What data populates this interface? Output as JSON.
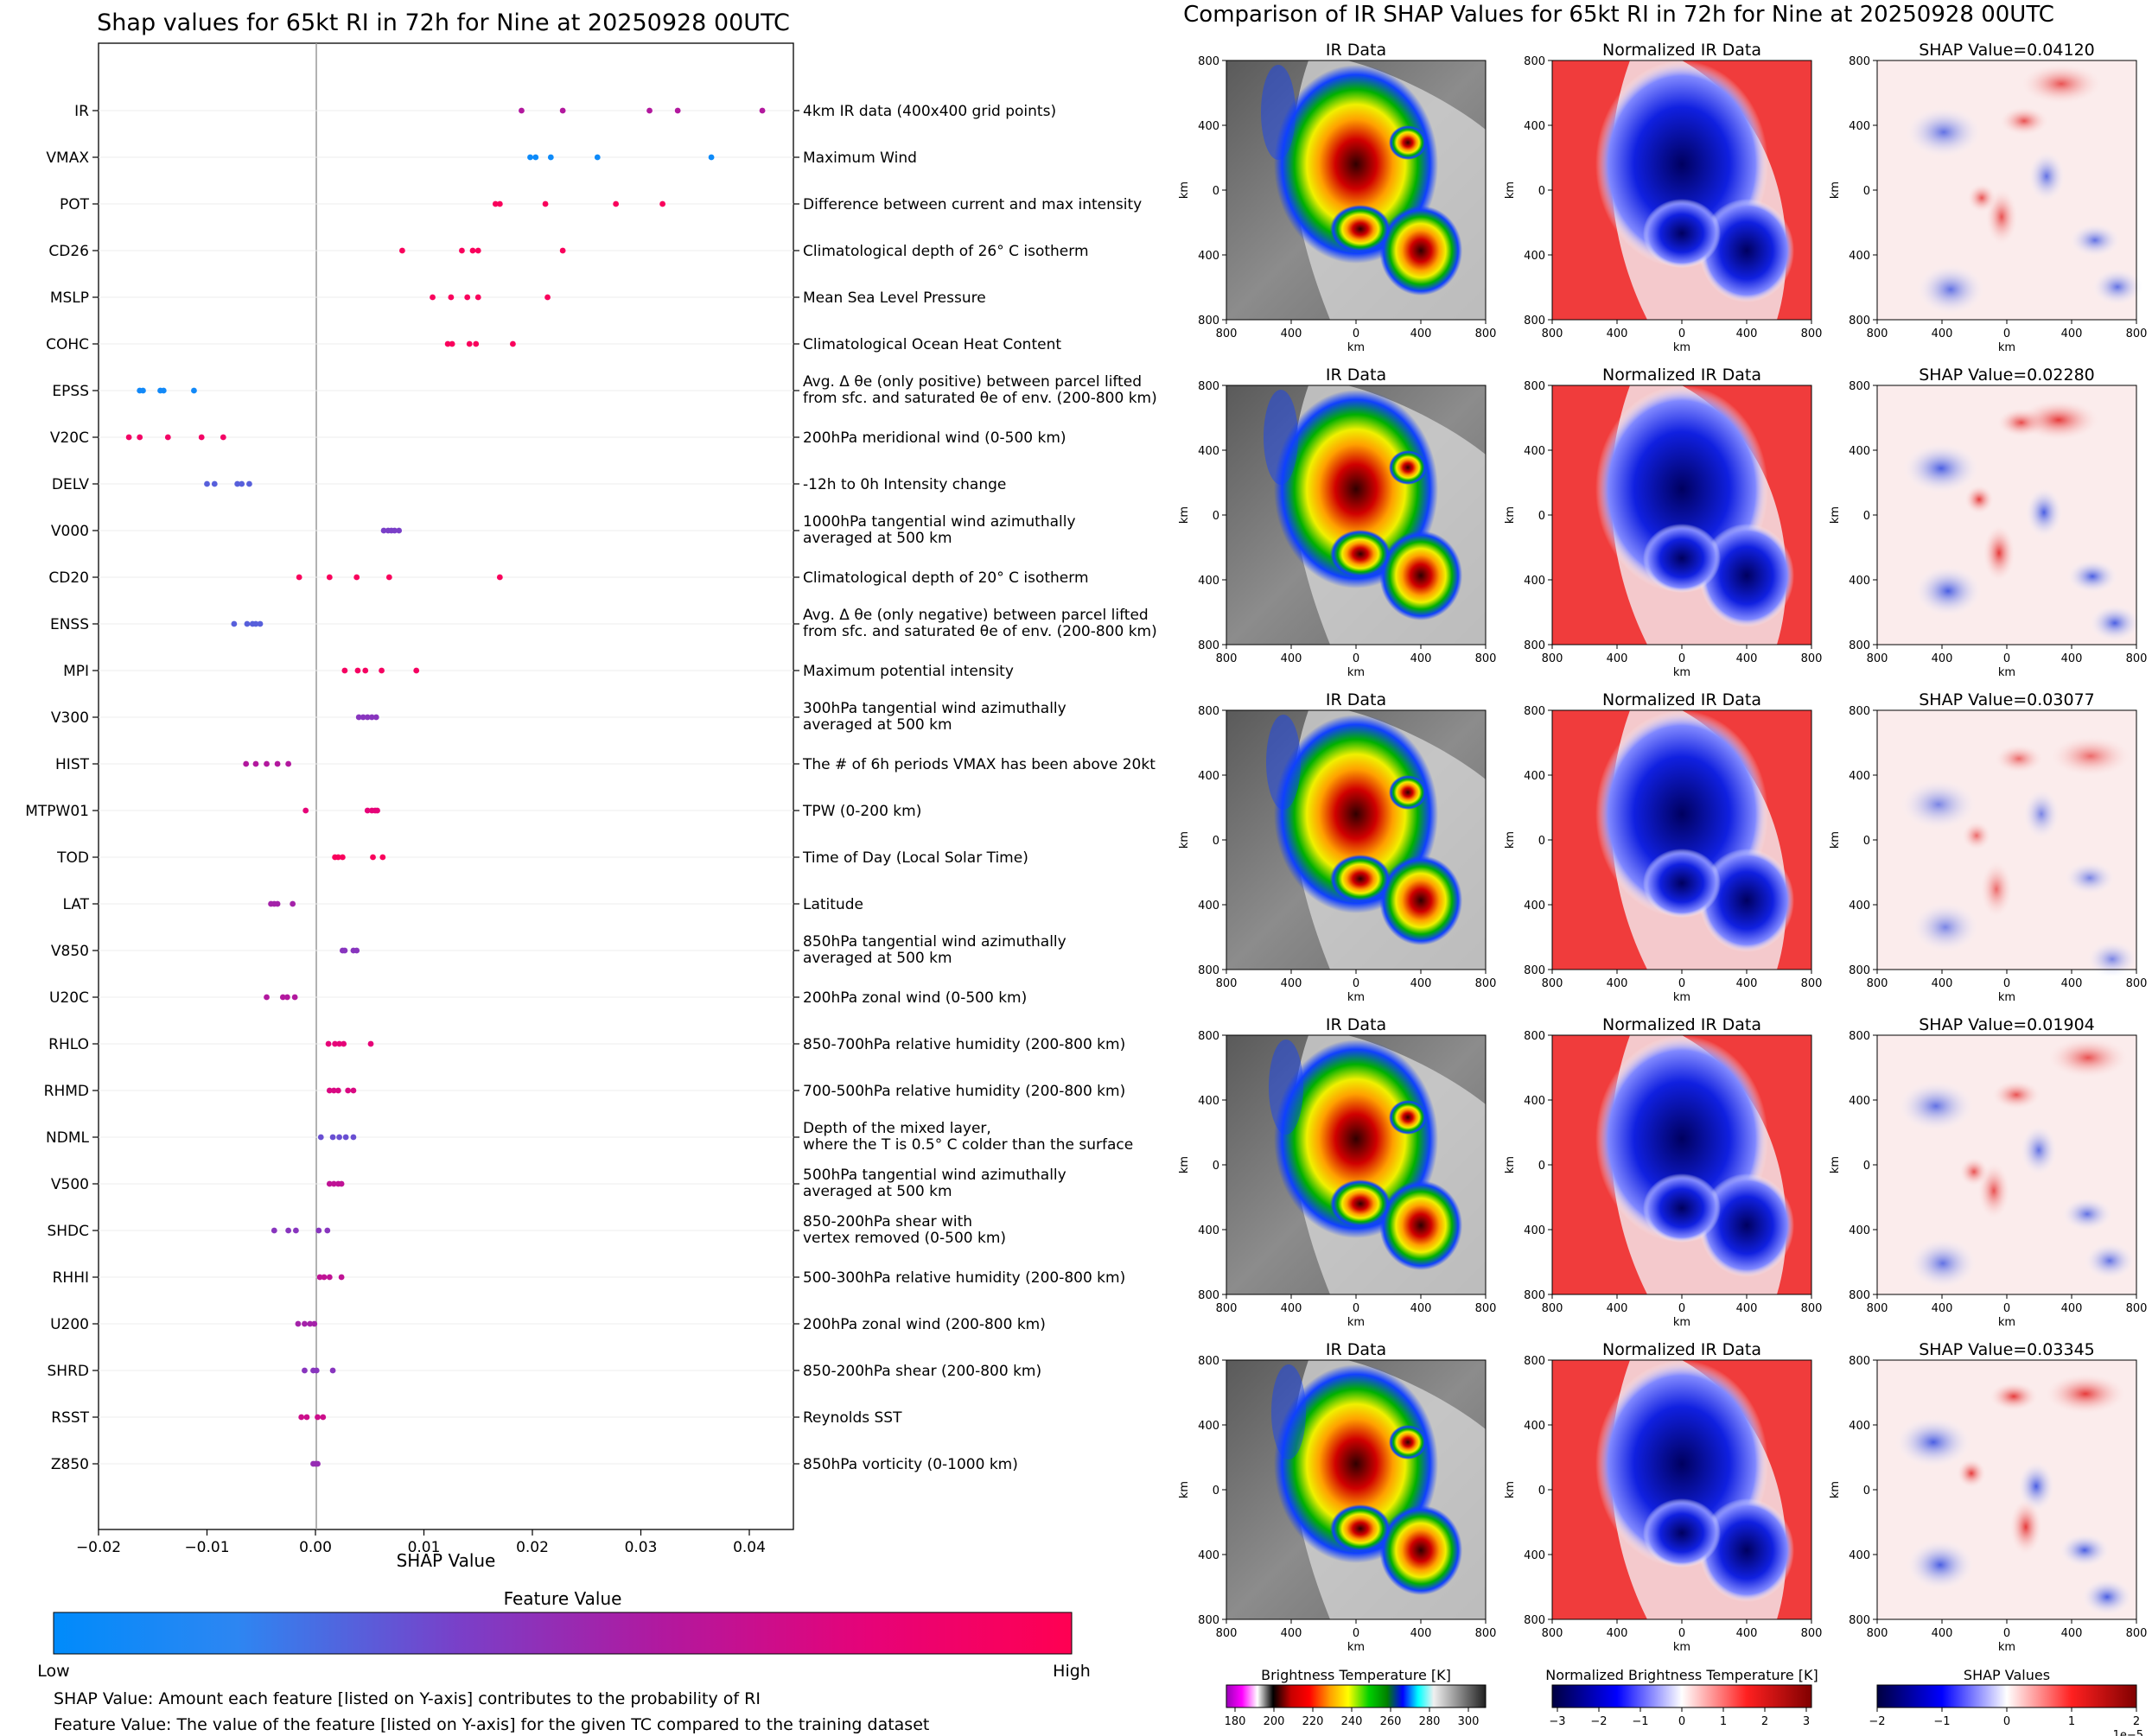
{
  "left_panel": {
    "title": "Shap values for 65kt RI in 72h for Nine at 20250928 00UTC",
    "xlabel": "SHAP Value",
    "colorbar_title": "Feature Value",
    "colorbar_low": "Low",
    "colorbar_high": "High",
    "note_shap": "SHAP Value: Amount each feature [listed on Y-axis] contributes to the probability of RI",
    "note_feature": "Feature Value: The value of the feature [listed on Y-axis] for the given TC compared to the training dataset"
  },
  "right_panel": {
    "title": "Comparison of IR SHAP Values for 65kt RI in 72h for Nine at 20250928 00UTC",
    "col_titles": [
      "IR Data",
      "Normalized IR Data"
    ],
    "shap_prefix": "SHAP Value=",
    "shap_values": [
      "0.04120",
      "0.02280",
      "0.03077",
      "0.01904",
      "0.03345"
    ],
    "axis_label": "km",
    "tick_labels": [
      "800",
      "400",
      "0",
      "400",
      "800"
    ],
    "colorbars": [
      {
        "title": "Brightness Temperature [K]",
        "ticks": [
          "180",
          "200",
          "220",
          "240",
          "260",
          "280",
          "300"
        ]
      },
      {
        "title": "Normalized Brightness Temperature [K]",
        "ticks": [
          "−3",
          "−2",
          "−1",
          "0",
          "1",
          "2",
          "3"
        ]
      },
      {
        "title": "SHAP Values",
        "ticks": [
          "−2",
          "−1",
          "0",
          "1",
          "2"
        ],
        "exponent": "1e−5"
      }
    ],
    "colors": {
      "cold": "#0a0a8f",
      "warm": "#f03c3c",
      "ir_gray": "#7a7a7a"
    }
  },
  "chart_data": {
    "type": "scatter",
    "xlim": [
      -0.02,
      0.044
    ],
    "xticks": [
      -0.02,
      -0.01,
      0.0,
      0.01,
      0.02,
      0.03,
      0.04
    ],
    "xtick_labels": [
      "−0.02",
      "−0.01",
      "0.00",
      "0.01",
      "0.02",
      "0.03",
      "0.04"
    ],
    "color_low": "#008bfb",
    "color_high": "#ff0052",
    "features": [
      {
        "name": "IR",
        "desc": [
          "4km IR data (400x400 grid points)"
        ],
        "shap": [
          0.019,
          0.0228,
          0.0308,
          0.0334,
          0.0412
        ],
        "fv": 0.6
      },
      {
        "name": "VMAX",
        "desc": [
          "Maximum Wind"
        ],
        "shap": [
          0.0198,
          0.0203,
          0.0217,
          0.026,
          0.0365
        ],
        "fv": 0.05
      },
      {
        "name": "POT",
        "desc": [
          "Difference between current and max intensity"
        ],
        "shap": [
          0.0166,
          0.017,
          0.0212,
          0.0277,
          0.032
        ],
        "fv": 0.95
      },
      {
        "name": "CD26",
        "desc": [
          "Climatological depth of 26° C isotherm"
        ],
        "shap": [
          0.008,
          0.0135,
          0.0145,
          0.015,
          0.0228
        ],
        "fv": 0.95
      },
      {
        "name": "MSLP",
        "desc": [
          "Mean Sea Level Pressure"
        ],
        "shap": [
          0.0108,
          0.0125,
          0.014,
          0.015,
          0.0214
        ],
        "fv": 0.95
      },
      {
        "name": "COHC",
        "desc": [
          "Climatological Ocean Heat Content"
        ],
        "shap": [
          0.0122,
          0.0126,
          0.0142,
          0.0148,
          0.0182
        ],
        "fv": 0.95
      },
      {
        "name": "EPSS",
        "desc": [
          "Avg. Δ θe (only positive) between parcel lifted",
          "from sfc. and saturated θe of env. (200-800 km)"
        ],
        "shap": [
          -0.0162,
          -0.0159,
          -0.0143,
          -0.014,
          -0.0112
        ],
        "fv": 0.07
      },
      {
        "name": "V20C",
        "desc": [
          "200hPa meridional wind (0-500 km)"
        ],
        "shap": [
          -0.0172,
          -0.0162,
          -0.0136,
          -0.0105,
          -0.0085
        ],
        "fv": 0.9
      },
      {
        "name": "DELV",
        "desc": [
          "-12h to 0h Intensity change"
        ],
        "shap": [
          -0.01,
          -0.0093,
          -0.0072,
          -0.0068,
          -0.0061
        ],
        "fv": 0.3
      },
      {
        "name": "V000",
        "desc": [
          "1000hPa tangential wind azimuthally",
          "averaged at 500 km"
        ],
        "shap": [
          0.0063,
          0.0067,
          0.007,
          0.0073,
          0.0077
        ],
        "fv": 0.4
      },
      {
        "name": "CD20",
        "desc": [
          "Climatological depth of 20° C isotherm"
        ],
        "shap": [
          -0.0015,
          0.0013,
          0.0038,
          0.0068,
          0.017
        ],
        "fv": 0.95
      },
      {
        "name": "ENSS",
        "desc": [
          "Avg. Δ θe (only negative) between parcel lifted",
          "from sfc. and saturated θe of env. (200-800 km)"
        ],
        "shap": [
          -0.0075,
          -0.0063,
          -0.0058,
          -0.0055,
          -0.0051
        ],
        "fv": 0.3
      },
      {
        "name": "MPI",
        "desc": [
          "Maximum potential intensity"
        ],
        "shap": [
          0.0027,
          0.0039,
          0.0046,
          0.0061,
          0.0093
        ],
        "fv": 0.92
      },
      {
        "name": "V300",
        "desc": [
          "300hPa tangential wind azimuthally",
          "averaged at 500 km"
        ],
        "shap": [
          0.004,
          0.0044,
          0.0048,
          0.0052,
          0.0056
        ],
        "fv": 0.45
      },
      {
        "name": "HIST",
        "desc": [
          "The # of 6h periods VMAX has been above 20kt"
        ],
        "shap": [
          -0.0064,
          -0.0055,
          -0.0045,
          -0.0035,
          -0.0025
        ],
        "fv": 0.6
      },
      {
        "name": "MTPW01",
        "desc": [
          "TPW (0-200 km)"
        ],
        "shap": [
          -0.0009,
          0.0048,
          0.0052,
          0.0055,
          0.0057
        ],
        "fv": 0.8
      },
      {
        "name": "TOD",
        "desc": [
          "Time of Day (Local Solar Time)"
        ],
        "shap": [
          0.0018,
          0.0021,
          0.0025,
          0.0053,
          0.0062
        ],
        "fv": 0.95
      },
      {
        "name": "LAT",
        "desc": [
          "Latitude"
        ],
        "shap": [
          -0.0041,
          -0.0038,
          -0.0035,
          -0.0021
        ],
        "fv": 0.55
      },
      {
        "name": "V850",
        "desc": [
          "850hPa tangential wind azimuthally",
          "averaged at 500 km"
        ],
        "shap": [
          0.0025,
          0.0027,
          0.0035,
          0.0038
        ],
        "fv": 0.45
      },
      {
        "name": "U20C",
        "desc": [
          "200hPa zonal wind (0-500 km)"
        ],
        "shap": [
          -0.0045,
          -0.003,
          -0.0026,
          -0.0019
        ],
        "fv": 0.6
      },
      {
        "name": "RHLO",
        "desc": [
          "850-700hPa relative humidity (200-800 km)"
        ],
        "shap": [
          0.0012,
          0.0018,
          0.0022,
          0.0026,
          0.0051
        ],
        "fv": 0.8
      },
      {
        "name": "RHMD",
        "desc": [
          "700-500hPa relative humidity (200-800 km)"
        ],
        "shap": [
          0.0013,
          0.0017,
          0.0021,
          0.003,
          0.0035
        ],
        "fv": 0.75
      },
      {
        "name": "NDML",
        "desc": [
          "Depth of the mixed layer,",
          "where the T is 0.5° C colder than the surface"
        ],
        "shap": [
          0.0005,
          0.0016,
          0.0022,
          0.0028,
          0.0035
        ],
        "fv": 0.35
      },
      {
        "name": "V500",
        "desc": [
          "500hPa tangential wind azimuthally",
          "averaged at 500 km"
        ],
        "shap": [
          0.0013,
          0.0017,
          0.0021,
          0.0024
        ],
        "fv": 0.65
      },
      {
        "name": "SHDC",
        "desc": [
          "850-200hPa shear with",
          "vertex removed (0-500 km)"
        ],
        "shap": [
          -0.0038,
          -0.0025,
          -0.0018,
          0.0003,
          0.0011
        ],
        "fv": 0.45
      },
      {
        "name": "RHHI",
        "desc": [
          "500-300hPa relative humidity (200-800 km)"
        ],
        "shap": [
          0.0004,
          0.0008,
          0.0013,
          0.0024
        ],
        "fv": 0.65
      },
      {
        "name": "U200",
        "desc": [
          "200hPa zonal wind (200-800 km)"
        ],
        "shap": [
          -0.0016,
          -0.001,
          -0.0005,
          -0.0001
        ],
        "fv": 0.55
      },
      {
        "name": "SHRD",
        "desc": [
          "850-200hPa shear (200-800 km)"
        ],
        "shap": [
          -0.001,
          -0.0002,
          0.0001,
          0.0016
        ],
        "fv": 0.45
      },
      {
        "name": "RSST",
        "desc": [
          "Reynolds SST"
        ],
        "shap": [
          -0.0013,
          -0.0008,
          0.0002,
          0.0007
        ],
        "fv": 0.7
      },
      {
        "name": "Z850",
        "desc": [
          "850hPa vorticity (0-1000 km)"
        ],
        "shap": [
          -0.0002,
          0.0,
          0.0002
        ],
        "fv": 0.5
      }
    ]
  }
}
